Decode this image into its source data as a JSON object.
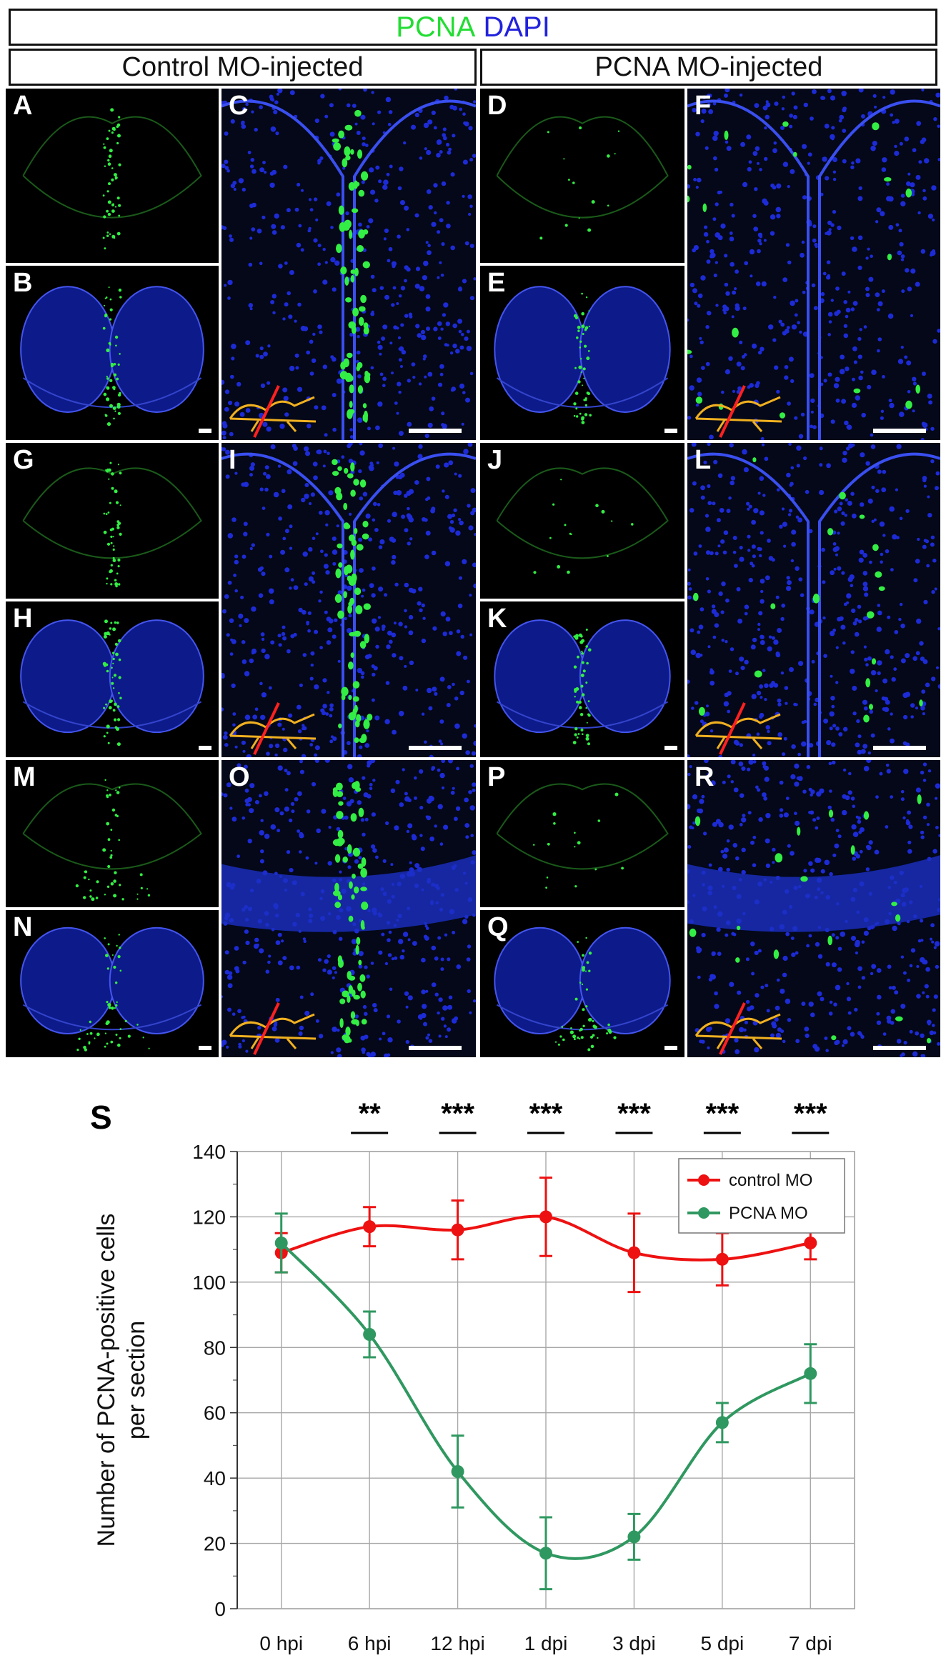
{
  "header": {
    "stain_1": "PCNA",
    "stain_2": "DAPI",
    "stain_1_color": "#22dd33",
    "stain_2_color": "#2222dd"
  },
  "conditions": {
    "left": "Control MO-injected",
    "right": "PCNA MO-injected"
  },
  "panels": {
    "A": "A",
    "B": "B",
    "C": "C",
    "D": "D",
    "E": "E",
    "F": "F",
    "G": "G",
    "H": "H",
    "I": "I",
    "J": "J",
    "K": "K",
    "L": "L",
    "M": "M",
    "N": "N",
    "O": "O",
    "P": "P",
    "Q": "Q",
    "R": "R"
  },
  "panel_kinds": {
    "A": "pcna",
    "B": "merge",
    "C": "zoom-midline",
    "D": "pcna-sparse",
    "E": "merge",
    "F": "zoom-sparse",
    "G": "pcna",
    "H": "merge",
    "I": "zoom-midline",
    "J": "pcna-sparse",
    "K": "merge",
    "L": "zoom-sparse",
    "M": "pcna-ventral",
    "N": "merge-ventral",
    "O": "zoom-ventral",
    "P": "pcna-sparse",
    "Q": "merge-ventral",
    "R": "zoom-ventral-sparse"
  },
  "colors": {
    "pcna_green": "#33ee44",
    "dapi_blue": "#1d2bd6",
    "brain_outline": "#f0b020",
    "section_line": "#ff2020"
  },
  "chart_data": {
    "panel_label": "S",
    "type": "line",
    "ylabel_line1": "Number of PCNA-positive cells",
    "ylabel_line2": "per section",
    "ylim": [
      0,
      140
    ],
    "yticks": [
      "0",
      "20",
      "40",
      "60",
      "80",
      "100",
      "120",
      "140"
    ],
    "categories": [
      "0 hpi",
      "6 hpi",
      "12 hpi",
      "1 dpi",
      "3 dpi",
      "5 dpi",
      "7 dpi"
    ],
    "grid": true,
    "legend_position": "top-right",
    "significance": [
      "",
      "**",
      "***",
      "***",
      "***",
      "***",
      "***"
    ],
    "series": [
      {
        "name": "control MO",
        "color": "#ee1111",
        "values": [
          109,
          117,
          116,
          120,
          109,
          107,
          112
        ],
        "errors": [
          6,
          6,
          9,
          12,
          12,
          8,
          5
        ]
      },
      {
        "name": "PCNA MO",
        "color": "#2f9860",
        "values": [
          112,
          84,
          42,
          17,
          22,
          57,
          72
        ],
        "errors": [
          9,
          7,
          11,
          11,
          7,
          6,
          9
        ]
      }
    ]
  }
}
